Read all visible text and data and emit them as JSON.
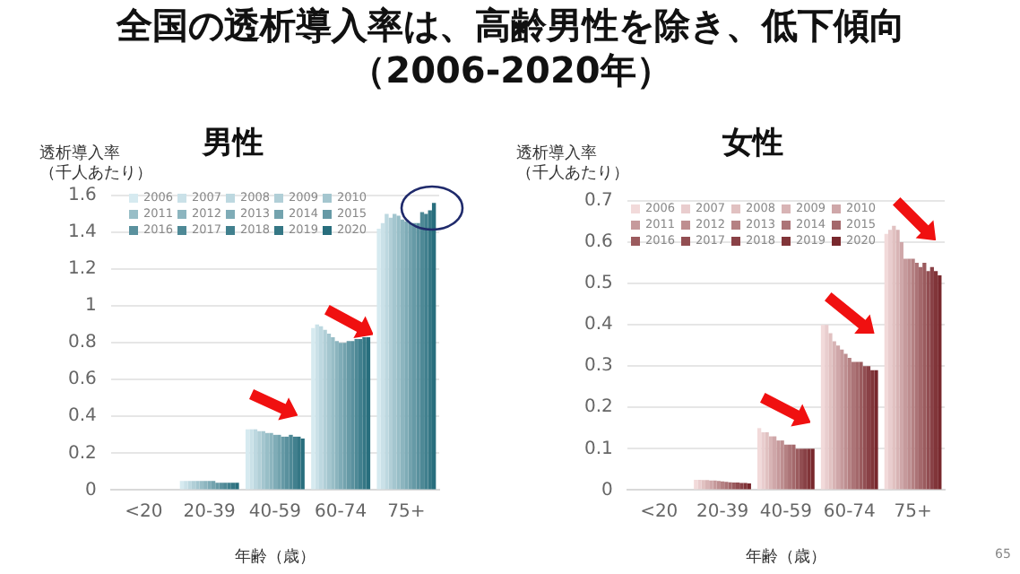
{
  "chart_data": [
    {
      "type": "bar",
      "title": "全国の透析導入率は、高齢男性を除き、低下傾向（2006-2020年）",
      "subtitle": "男性",
      "xlabel": "年齢（歳）",
      "ylabel": "透析導入率（千人あたり）",
      "categories": [
        "<20",
        "20-39",
        "40-59",
        "60-74",
        "75+"
      ],
      "ylim": [
        0,
        1.6
      ],
      "yticks": [
        0,
        0.2,
        0.4,
        0.6,
        0.8,
        1,
        1.2,
        1.4,
        1.6
      ],
      "grid": "y",
      "legend": "top",
      "series": [
        {
          "name": "2006",
          "color": "#d6eaf0",
          "values": [
            0,
            0.05,
            0.33,
            0.88,
            1.42
          ]
        },
        {
          "name": "2007",
          "color": "#cae1e8",
          "values": [
            0,
            0.05,
            0.33,
            0.9,
            1.45
          ]
        },
        {
          "name": "2008",
          "color": "#bdd8e0",
          "values": [
            0,
            0.05,
            0.33,
            0.89,
            1.5
          ]
        },
        {
          "name": "2009",
          "color": "#b1cfd7",
          "values": [
            0,
            0.05,
            0.32,
            0.87,
            1.48
          ]
        },
        {
          "name": "2010",
          "color": "#a4c6cf",
          "values": [
            0,
            0.05,
            0.32,
            0.85,
            1.5
          ]
        },
        {
          "name": "2011",
          "color": "#98bec7",
          "values": [
            0,
            0.05,
            0.31,
            0.83,
            1.49
          ]
        },
        {
          "name": "2012",
          "color": "#8cb5bf",
          "values": [
            0,
            0.05,
            0.31,
            0.81,
            1.47
          ]
        },
        {
          "name": "2013",
          "color": "#7facb7",
          "values": [
            0,
            0.05,
            0.3,
            0.8,
            1.46
          ]
        },
        {
          "name": "2014",
          "color": "#73a3ae",
          "values": [
            0,
            0.05,
            0.3,
            0.8,
            1.45
          ]
        },
        {
          "name": "2015",
          "color": "#669aa6",
          "values": [
            0,
            0.04,
            0.29,
            0.81,
            1.45
          ]
        },
        {
          "name": "2016",
          "color": "#5a919e",
          "values": [
            0,
            0.04,
            0.29,
            0.81,
            1.45
          ]
        },
        {
          "name": "2017",
          "color": "#4e8996",
          "values": [
            0,
            0.04,
            0.3,
            0.82,
            1.51
          ]
        },
        {
          "name": "2018",
          "color": "#41808e",
          "values": [
            0,
            0.04,
            0.29,
            0.82,
            1.5
          ]
        },
        {
          "name": "2019",
          "color": "#357785",
          "values": [
            0,
            0.04,
            0.29,
            0.83,
            1.52
          ]
        },
        {
          "name": "2020",
          "color": "#286e7d",
          "values": [
            0,
            0.04,
            0.28,
            0.83,
            1.56
          ]
        }
      ]
    },
    {
      "type": "bar",
      "subtitle": "女性",
      "xlabel": "年齢（歳）",
      "ylabel": "透析導入率（千人あたり）",
      "annotations": [
        "65"
      ],
      "categories": [
        "<20",
        "20-39",
        "40-59",
        "60-74",
        "75+"
      ],
      "ylim": [
        0,
        0.7
      ],
      "yticks": [
        0,
        0.1,
        0.2,
        0.3,
        0.4,
        0.5,
        0.6,
        0.7
      ],
      "grid": "y",
      "legend": "top",
      "series": [
        {
          "name": "2006",
          "color": "#f2dada",
          "values": [
            0,
            0.025,
            0.15,
            0.4,
            0.62
          ]
        },
        {
          "name": "2007",
          "color": "#e9cdce",
          "values": [
            0,
            0.025,
            0.14,
            0.4,
            0.63
          ]
        },
        {
          "name": "2008",
          "color": "#e1c1c1",
          "values": [
            0,
            0.024,
            0.14,
            0.38,
            0.64
          ]
        },
        {
          "name": "2009",
          "color": "#d8b4b5",
          "values": [
            0,
            0.024,
            0.13,
            0.36,
            0.63
          ]
        },
        {
          "name": "2010",
          "color": "#cfa7a9",
          "values": [
            0,
            0.023,
            0.13,
            0.35,
            0.6
          ]
        },
        {
          "name": "2011",
          "color": "#c69a9c",
          "values": [
            0,
            0.023,
            0.12,
            0.34,
            0.56
          ]
        },
        {
          "name": "2012",
          "color": "#be8e90",
          "values": [
            0,
            0.022,
            0.12,
            0.33,
            0.56
          ]
        },
        {
          "name": "2013",
          "color": "#b58183",
          "values": [
            0,
            0.021,
            0.11,
            0.32,
            0.56
          ]
        },
        {
          "name": "2014",
          "color": "#ac7477",
          "values": [
            0,
            0.02,
            0.11,
            0.31,
            0.55
          ]
        },
        {
          "name": "2015",
          "color": "#a4686b",
          "values": [
            0,
            0.019,
            0.11,
            0.31,
            0.54
          ]
        },
        {
          "name": "2016",
          "color": "#9b5b5e",
          "values": [
            0,
            0.018,
            0.1,
            0.31,
            0.55
          ]
        },
        {
          "name": "2017",
          "color": "#924e52",
          "values": [
            0,
            0.018,
            0.1,
            0.3,
            0.53
          ]
        },
        {
          "name": "2018",
          "color": "#894146",
          "values": [
            0,
            0.017,
            0.1,
            0.3,
            0.54
          ]
        },
        {
          "name": "2019",
          "color": "#813539",
          "values": [
            0,
            0.017,
            0.1,
            0.29,
            0.53
          ]
        },
        {
          "name": "2020",
          "color": "#78282d",
          "values": [
            0,
            0.016,
            0.1,
            0.29,
            0.52
          ]
        }
      ]
    }
  ]
}
